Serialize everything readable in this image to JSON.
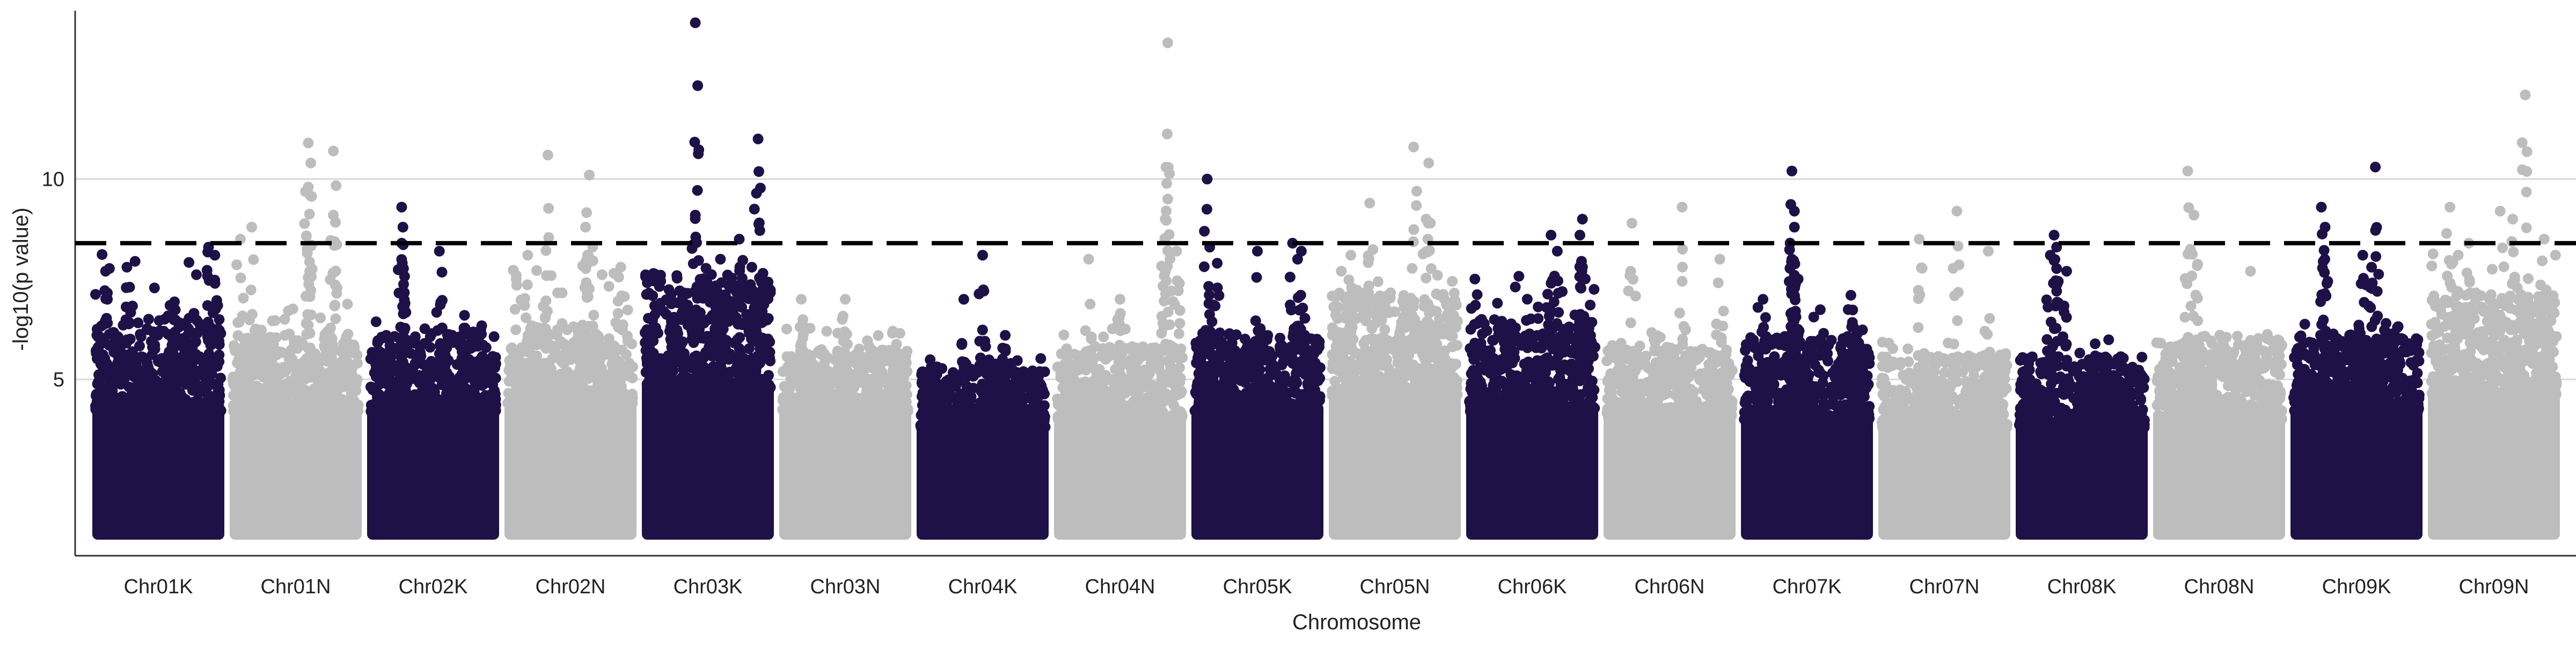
{
  "chart_data": {
    "type": "scatter",
    "subtype": "manhattan",
    "title": "",
    "xlabel": "Chromosome",
    "ylabel": "-log10(p value)",
    "ylim": [
      0.6,
      14.2
    ],
    "y_ticks": [
      5,
      10
    ],
    "grid": "horizontal major",
    "legend": "none",
    "threshold": {
      "value": 8.4,
      "style": "dashed",
      "color": "#000000"
    },
    "colors": {
      "dark": "#1d1147",
      "light": "#bdbdbd"
    },
    "chromosomes": [
      {
        "name": "Chr01K",
        "color": "dark",
        "bulk_top": 5.0,
        "spread": 1.8,
        "tail": 8.2,
        "peaks": [
          [
            0.08,
            7.7
          ],
          [
            0.25,
            7.8
          ],
          [
            0.9,
            8.3
          ],
          [
            0.95,
            8.1
          ]
        ]
      },
      {
        "name": "Chr01N",
        "color": "light",
        "bulk_top": 5.0,
        "spread": 1.5,
        "tail": 7.0,
        "peaks": [
          [
            0.06,
            8.5
          ],
          [
            0.15,
            8.8
          ],
          [
            0.6,
            10.9
          ],
          [
            0.62,
            10.4
          ],
          [
            0.6,
            9.8
          ],
          [
            0.8,
            10.7
          ],
          [
            0.8,
            9.1
          ]
        ]
      },
      {
        "name": "Chr02K",
        "color": "dark",
        "bulk_top": 5.0,
        "spread": 1.5,
        "tail": 6.5,
        "peaks": [
          [
            0.25,
            9.3
          ],
          [
            0.26,
            8.8
          ],
          [
            0.25,
            8.4
          ],
          [
            0.55,
            8.2
          ],
          [
            0.75,
            6.6
          ]
        ]
      },
      {
        "name": "Chr02N",
        "color": "light",
        "bulk_top": 5.2,
        "spread": 1.5,
        "tail": 7.8,
        "peaks": [
          [
            0.16,
            8.1
          ],
          [
            0.32,
            10.6
          ],
          [
            0.62,
            8.8
          ],
          [
            0.65,
            10.1
          ],
          [
            0.9,
            7.8
          ]
        ]
      },
      {
        "name": "Chr03K",
        "color": "dark",
        "bulk_top": 5.6,
        "spread": 2.2,
        "tail": 7.8,
        "peaks": [
          [
            0.4,
            13.9
          ],
          [
            0.4,
            9.1
          ],
          [
            0.6,
            8.0
          ],
          [
            0.75,
            8.5
          ],
          [
            0.9,
            11.0
          ],
          [
            0.85,
            7.8
          ]
        ]
      },
      {
        "name": "Chr03N",
        "color": "light",
        "bulk_top": 5.0,
        "spread": 1.2,
        "tail": 6.3,
        "peaks": [
          [
            0.15,
            7.0
          ],
          [
            0.5,
            7.0
          ]
        ]
      },
      {
        "name": "Chr04K",
        "color": "dark",
        "bulk_top": 4.6,
        "spread": 1.2,
        "tail": 5.6,
        "peaks": [
          [
            0.35,
            7.0
          ],
          [
            0.5,
            8.1
          ],
          [
            0.68,
            6.1
          ]
        ]
      },
      {
        "name": "Chr04N",
        "color": "light",
        "bulk_top": 4.8,
        "spread": 1.4,
        "tail": 6.3,
        "peaks": [
          [
            0.25,
            8.0
          ],
          [
            0.5,
            7.0
          ],
          [
            0.88,
            13.4
          ],
          [
            0.88,
            9.5
          ],
          [
            0.86,
            9.0
          ],
          [
            0.95,
            8.2
          ]
        ]
      },
      {
        "name": "Chr05K",
        "color": "dark",
        "bulk_top": 5.0,
        "spread": 1.5,
        "tail": 6.2,
        "peaks": [
          [
            0.1,
            10.0
          ],
          [
            0.12,
            8.3
          ],
          [
            0.18,
            7.9
          ],
          [
            0.5,
            8.2
          ],
          [
            0.78,
            8.4
          ],
          [
            0.82,
            8.0
          ],
          [
            0.85,
            8.2
          ]
        ]
      },
      {
        "name": "Chr05N",
        "color": "light",
        "bulk_top": 5.4,
        "spread": 2.0,
        "tail": 7.7,
        "peaks": [
          [
            0.15,
            8.1
          ],
          [
            0.3,
            9.4
          ],
          [
            0.65,
            10.8
          ],
          [
            0.77,
            10.4
          ],
          [
            0.75,
            9.0
          ]
        ]
      },
      {
        "name": "Chr06K",
        "color": "dark",
        "bulk_top": 5.0,
        "spread": 1.8,
        "tail": 7.6,
        "peaks": [
          [
            0.65,
            8.6
          ],
          [
            0.7,
            8.2
          ],
          [
            0.9,
            9.0
          ],
          [
            0.88,
            8.6
          ],
          [
            0.9,
            7.5
          ]
        ]
      },
      {
        "name": "Chr06N",
        "color": "light",
        "bulk_top": 4.8,
        "spread": 1.4,
        "tail": 6.2,
        "peaks": [
          [
            0.2,
            8.9
          ],
          [
            0.6,
            9.3
          ],
          [
            0.9,
            8.0
          ]
        ]
      },
      {
        "name": "Chr07K",
        "color": "dark",
        "bulk_top": 4.8,
        "spread": 1.6,
        "tail": 6.8,
        "peaks": [
          [
            0.38,
            10.2
          ],
          [
            0.4,
            9.2
          ],
          [
            0.4,
            8.8
          ],
          [
            0.38,
            8.0
          ],
          [
            0.4,
            7.6
          ],
          [
            0.15,
            7.0
          ],
          [
            0.85,
            7.1
          ]
        ]
      },
      {
        "name": "Chr07N",
        "color": "light",
        "bulk_top": 4.6,
        "spread": 1.4,
        "tail": 6.0,
        "peaks": [
          [
            0.3,
            8.5
          ],
          [
            0.6,
            9.2
          ],
          [
            0.85,
            8.2
          ]
        ]
      },
      {
        "name": "Chr08K",
        "color": "dark",
        "bulk_top": 4.6,
        "spread": 1.4,
        "tail": 6.0,
        "peaks": [
          [
            0.28,
            8.6
          ],
          [
            0.3,
            8.3
          ],
          [
            0.38,
            7.7
          ],
          [
            0.25,
            8.1
          ]
        ]
      },
      {
        "name": "Chr08N",
        "color": "light",
        "bulk_top": 4.8,
        "spread": 1.6,
        "tail": 6.3,
        "peaks": [
          [
            0.25,
            10.2
          ],
          [
            0.3,
            9.1
          ],
          [
            0.75,
            7.7
          ]
        ]
      },
      {
        "name": "Chr09K",
        "color": "dark",
        "bulk_top": 5.0,
        "spread": 1.5,
        "tail": 6.4,
        "peaks": [
          [
            0.22,
            9.3
          ],
          [
            0.25,
            8.8
          ],
          [
            0.55,
            8.1
          ],
          [
            0.65,
            10.3
          ],
          [
            0.62,
            7.8
          ]
        ]
      },
      {
        "name": "Chr09N",
        "color": "light",
        "bulk_top": 5.4,
        "spread": 2.0,
        "tail": 8.2,
        "peaks": [
          [
            0.15,
            9.3
          ],
          [
            0.3,
            8.4
          ],
          [
            0.55,
            9.2
          ],
          [
            0.65,
            9.0
          ],
          [
            0.75,
            12.1
          ],
          [
            0.9,
            8.5
          ]
        ]
      }
    ]
  }
}
